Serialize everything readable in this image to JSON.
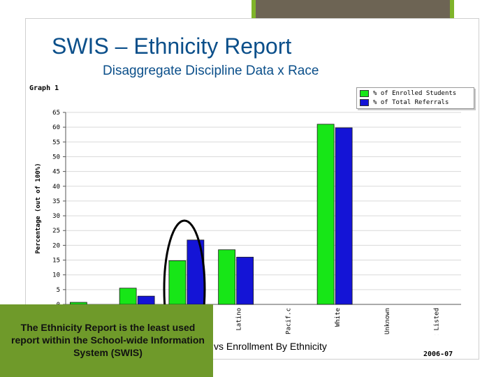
{
  "slide": {
    "title": "SWIS – Ethnicity Report",
    "subtitle": "Disaggregate Discipline Data x Race",
    "caption": "The Ethnicity Report is the least used report  within the School-wide Information System (SWIS)",
    "footer_text": "vs Enrollment By Ethnicity",
    "footer_year": "2006-07"
  },
  "chart_data": {
    "type": "bar",
    "title": "Graph 1",
    "ylabel": "Percentage (out of 100%)",
    "xlabel": "",
    "ylim": [
      0,
      65
    ],
    "yticks": [
      0,
      5,
      10,
      15,
      20,
      25,
      30,
      35,
      40,
      45,
      50,
      55,
      60,
      65
    ],
    "grid": true,
    "legend_position": "top-right",
    "categories": [
      "",
      "",
      "",
      "Latino",
      "Pacific",
      "White",
      "Unknown",
      "Not Listed"
    ],
    "category_labels_visible": [
      "",
      "",
      "",
      "Latino",
      "Pacif.c",
      "White",
      "Unknown",
      "Not Listed"
    ],
    "series": [
      {
        "name": "% of Enrolled Students",
        "color": "#17e617",
        "values": [
          0.7,
          5.5,
          14.8,
          18.5,
          0,
          61,
          0,
          0
        ]
      },
      {
        "name": "% of Total Referrals",
        "color": "#1414d6",
        "values": [
          0,
          2.8,
          21.8,
          16,
          0,
          59.8,
          0,
          0
        ]
      }
    ]
  }
}
